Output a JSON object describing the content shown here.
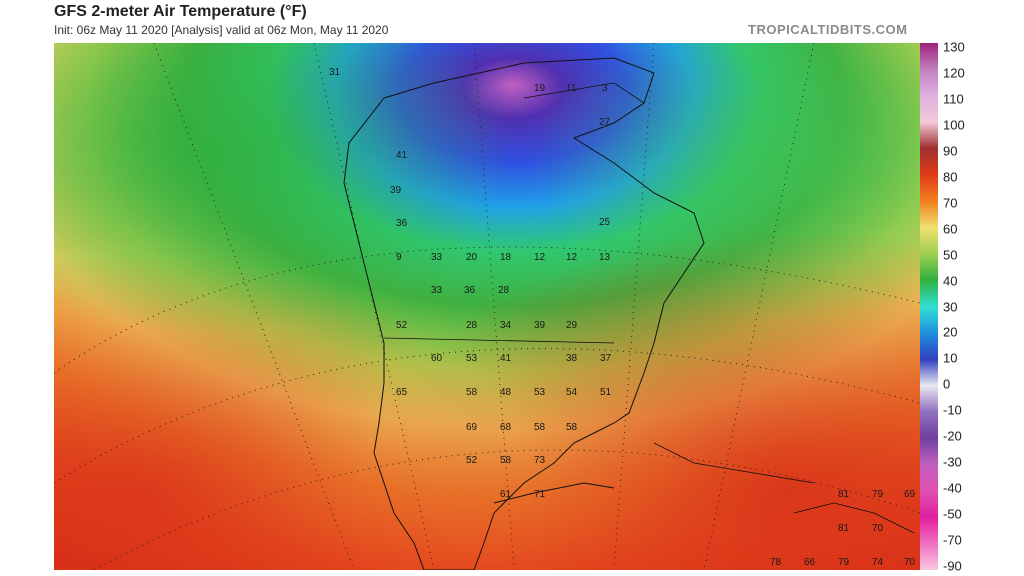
{
  "header": {
    "title": "GFS 2-meter Air Temperature (°F)",
    "subtitle": "Init: 06z May 11 2020   [Analysis]   valid at 06z Mon, May 11 2020",
    "brand": "TROPICALTIDBITS.COM"
  },
  "colorbar": {
    "ticks": [
      "130",
      "120",
      "110",
      "100",
      "90",
      "80",
      "70",
      "60",
      "50",
      "40",
      "30",
      "20",
      "10",
      "0",
      "-10",
      "-20",
      "-30",
      "-40",
      "-50",
      "-70",
      "-90"
    ],
    "colors": [
      "#a0207a",
      "#c080c0",
      "#e0b0e0",
      "#f0c8d8",
      "#a03030",
      "#e03a18",
      "#f08020",
      "#f0e070",
      "#a0d050",
      "#30b040",
      "#30e0d0",
      "#2090e0",
      "#3040c0",
      "#e8e8f0",
      "#9070c0",
      "#7040a0",
      "#c060c0",
      "#e050b0",
      "#e020a0",
      "#f070c0",
      "#f8c8e0"
    ]
  },
  "map": {
    "labels": [
      {
        "text": "31"
      },
      {
        "text": "19"
      },
      {
        "text": "11"
      },
      {
        "text": "3"
      },
      {
        "text": "27"
      },
      {
        "text": "41"
      },
      {
        "text": "39"
      },
      {
        "text": "36"
      },
      {
        "text": "25"
      },
      {
        "text": "9"
      },
      {
        "text": "33"
      },
      {
        "text": "20"
      },
      {
        "text": "18"
      },
      {
        "text": "12"
      },
      {
        "text": "12"
      },
      {
        "text": "13"
      },
      {
        "text": "33"
      },
      {
        "text": "36"
      },
      {
        "text": "28"
      },
      {
        "text": "52"
      },
      {
        "text": "28"
      },
      {
        "text": "34"
      },
      {
        "text": "39"
      },
      {
        "text": "29"
      },
      {
        "text": "60"
      },
      {
        "text": "53"
      },
      {
        "text": "41"
      },
      {
        "text": "38"
      },
      {
        "text": "37"
      },
      {
        "text": "65"
      },
      {
        "text": "58"
      },
      {
        "text": "48"
      },
      {
        "text": "53"
      },
      {
        "text": "54"
      },
      {
        "text": "51"
      },
      {
        "text": "69"
      },
      {
        "text": "68"
      },
      {
        "text": "58"
      },
      {
        "text": "58"
      },
      {
        "text": "52"
      },
      {
        "text": "58"
      },
      {
        "text": "73"
      },
      {
        "text": "61"
      },
      {
        "text": "71"
      },
      {
        "text": "81"
      },
      {
        "text": "79"
      },
      {
        "text": "69"
      },
      {
        "text": "81"
      },
      {
        "text": "70"
      },
      {
        "text": "78"
      },
      {
        "text": "66"
      },
      {
        "text": "79"
      },
      {
        "text": "74"
      },
      {
        "text": "70"
      }
    ]
  }
}
